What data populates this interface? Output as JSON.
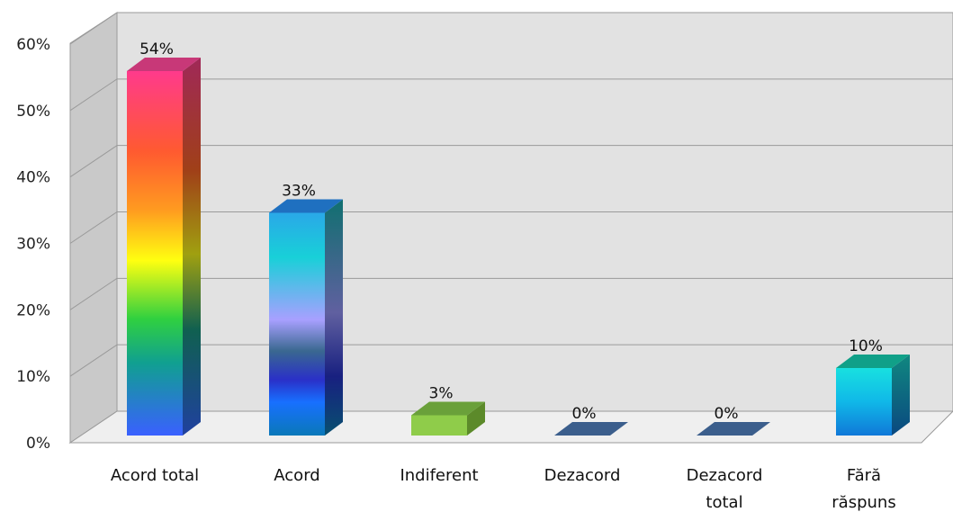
{
  "chart_data": {
    "type": "bar",
    "categories": [
      [
        "Acord total"
      ],
      [
        "Acord"
      ],
      [
        "Indiferent"
      ],
      [
        "Dezacord"
      ],
      [
        "Dezacord",
        "total"
      ],
      [
        "Fără",
        "răspuns"
      ]
    ],
    "values": [
      54,
      33,
      3,
      0,
      0,
      10
    ],
    "data_labels": [
      "54%",
      "33%",
      "3%",
      "0%",
      "0%",
      "10%"
    ],
    "ylim": [
      0,
      60
    ],
    "yticks": [
      0,
      10,
      20,
      30,
      40,
      50,
      60
    ],
    "ytick_labels": [
      "0%",
      "10%",
      "20%",
      "30%",
      "40%",
      "50%",
      "60%"
    ],
    "grid": true,
    "legend": "none",
    "style": "3d-column",
    "colors": {
      "wall": "#e2e2e2",
      "side_wall": "#c9c9c9",
      "floor": "#efefef",
      "grid": "#9a9a9a",
      "zero_bar": "#3b5e8c",
      "indiferent": "#8fcc4a"
    }
  }
}
